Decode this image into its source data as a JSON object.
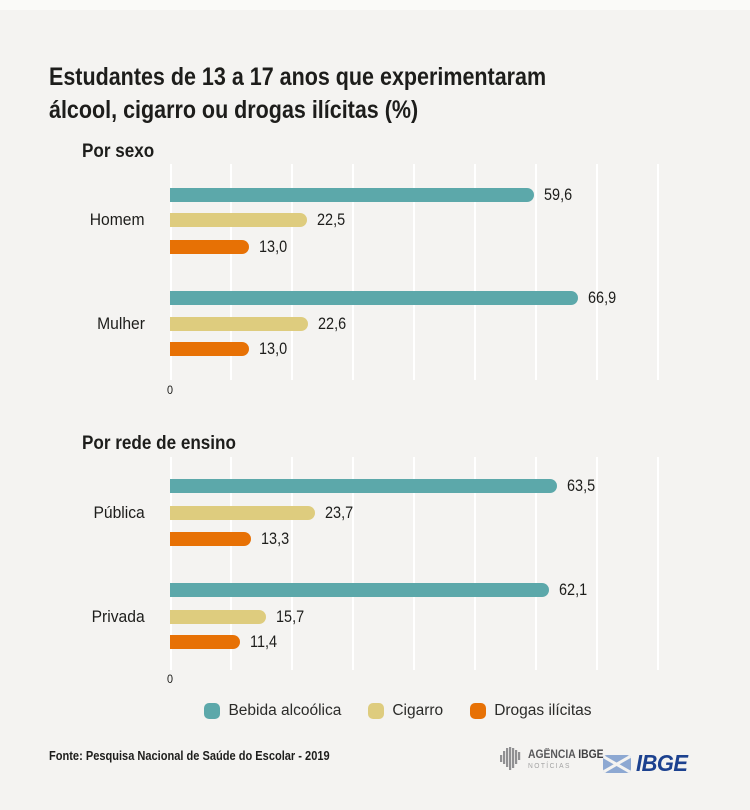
{
  "title": {
    "full": "Estudantes de 13 a 17 anos que experimentaram álcool, cigarro ou drogas ilícitas (%)",
    "line1": "Estudantes de 13 a 17 anos que experimentaram",
    "line2": "álcool, cigarro ou drogas ilícitas (%)"
  },
  "colors": {
    "background": "#f4f3f1",
    "grid": "#ffffff",
    "text": "#1d1d1b",
    "teal": "#5ca8aa",
    "tan": "#decc7e",
    "orange": "#e77105",
    "ibge_blue": "#1c418f",
    "ibge_light_blue": "#8da8d2"
  },
  "legend": [
    {
      "icon": "teal-swatch",
      "label": "Bebida alcoólica",
      "color": "#5ca8aa"
    },
    {
      "icon": "tan-swatch",
      "label": "Cigarro",
      "color": "#decc7e"
    },
    {
      "icon": "orange-swatch",
      "label": "Drogas ilícitas",
      "color": "#e77105"
    }
  ],
  "chart_data": [
    {
      "type": "bar",
      "orientation": "horizontal",
      "section_title": "Por sexo",
      "categories": [
        "Homem",
        "Mulher"
      ],
      "series": [
        {
          "name": "Bebida alcoólica",
          "color": "#5ca8aa",
          "values": [
            59.6,
            66.9
          ]
        },
        {
          "name": "Cigarro",
          "color": "#decc7e",
          "values": [
            22.5,
            22.6
          ]
        },
        {
          "name": "Drogas ilícitas",
          "color": "#e77105",
          "values": [
            13.0,
            13.0
          ]
        }
      ],
      "value_labels": [
        [
          "59,6",
          "22,5",
          "13,0"
        ],
        [
          "66,9",
          "22,6",
          "13,0"
        ]
      ],
      "xlim": [
        0,
        95
      ],
      "grid_interval": 10,
      "grid_on": true,
      "zero_label": "0",
      "legend_position": "bottom-shared"
    },
    {
      "type": "bar",
      "orientation": "horizontal",
      "section_title": "Por rede de ensino",
      "categories": [
        "Pública",
        "Privada"
      ],
      "series": [
        {
          "name": "Bebida alcoólica",
          "color": "#5ca8aa",
          "values": [
            63.5,
            62.1
          ]
        },
        {
          "name": "Cigarro",
          "color": "#decc7e",
          "values": [
            23.7,
            15.7
          ]
        },
        {
          "name": "Drogas ilícitas",
          "color": "#e77105",
          "values": [
            13.3,
            11.4
          ]
        }
      ],
      "value_labels": [
        [
          "63,5",
          "23,7",
          "13,3"
        ],
        [
          "62,1",
          "15,7",
          "11,4"
        ]
      ],
      "xlim": [
        0,
        95
      ],
      "grid_interval": 10,
      "grid_on": true,
      "zero_label": "0",
      "legend_position": "bottom-shared"
    }
  ],
  "footer": {
    "source": "Fonte: Pesquisa Nacional de Saúde do Escolar - 2019",
    "agencia_logo": {
      "name_part1": "AGÊNCIA ",
      "name_part2": "IBGE",
      "subtitle": "NOTÍCIAS"
    },
    "ibge_logo_text": "IBGE"
  }
}
